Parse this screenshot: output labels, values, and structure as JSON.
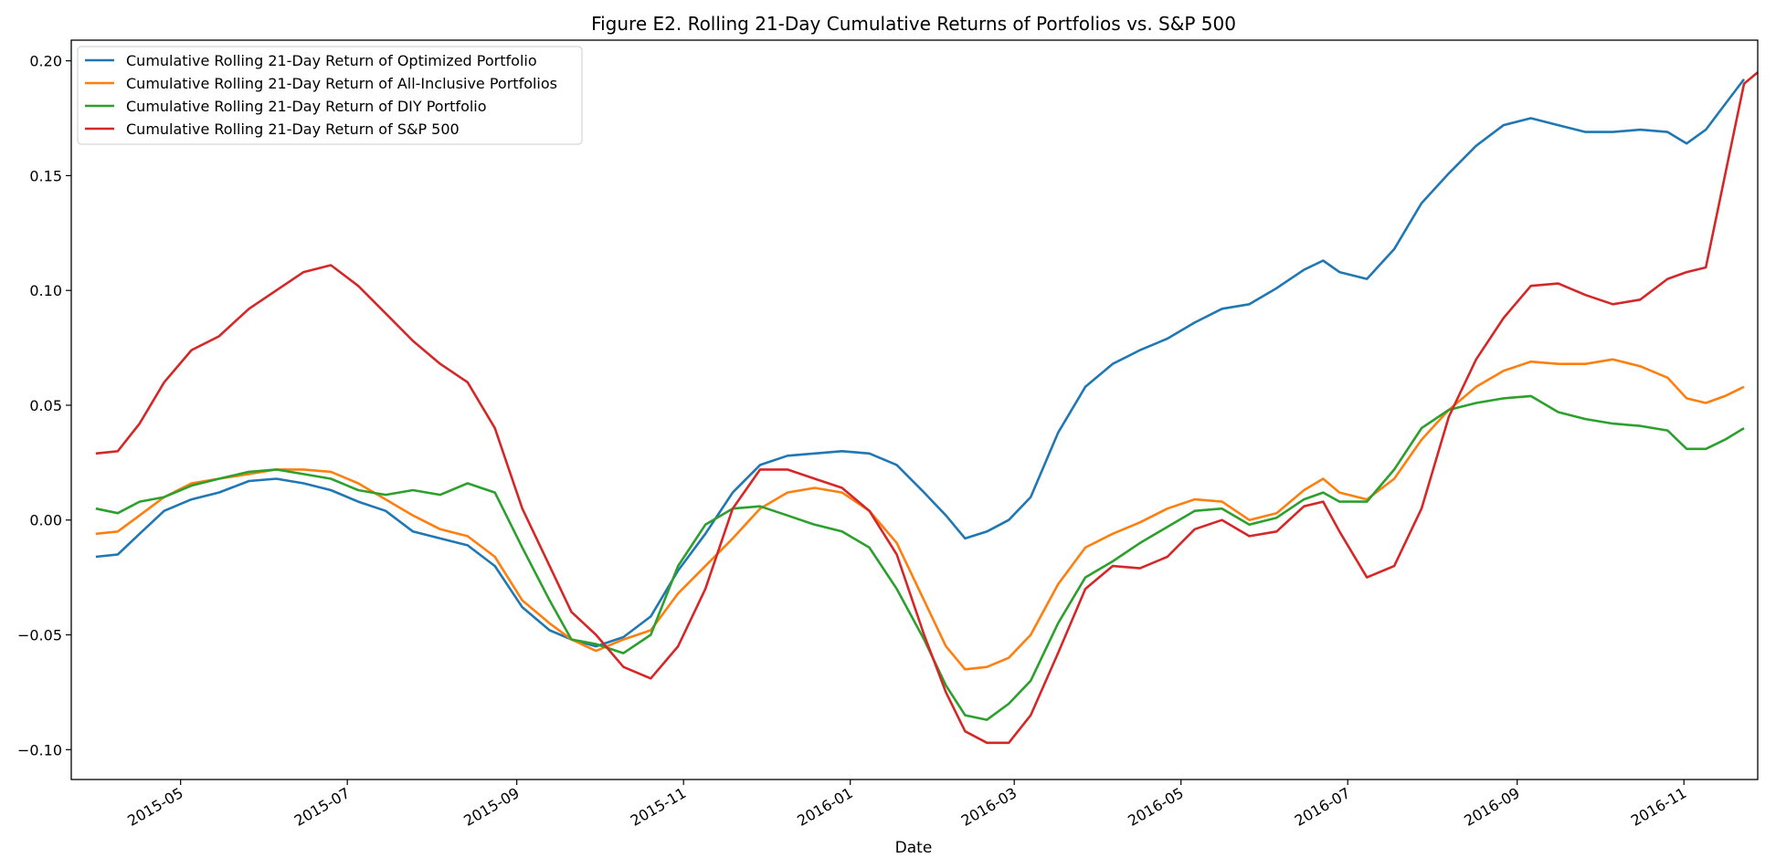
{
  "chart_data": {
    "type": "line",
    "title": "Figure E2. Rolling 21-Day Cumulative Returns of Portfolios vs. S&P 500",
    "xlabel": "Date",
    "ylabel": "",
    "grid": false,
    "legend_position": "top-left",
    "x_ticks": [
      "2015-05",
      "2015-07",
      "2015-09",
      "2015-11",
      "2016-01",
      "2016-03",
      "2016-05",
      "2016-07",
      "2016-09",
      "2016-11"
    ],
    "y_ticks": [
      "0.20",
      "0.15",
      "0.10",
      "0.05",
      "0.00",
      "−0.05",
      "−0.10"
    ],
    "ylim": [
      -0.113,
      0.209
    ],
    "xlim": [
      "2015-03-22",
      "2016-11-28"
    ],
    "series": [
      {
        "name": "Cumulative Rolling 21-Day Return of Optimized Portfolio",
        "color": "#1f77b4",
        "points": [
          [
            "2015-03-31",
            -0.016
          ],
          [
            "2015-04-08",
            -0.015
          ],
          [
            "2015-04-16",
            -0.006
          ],
          [
            "2015-04-25",
            0.004
          ],
          [
            "2015-05-05",
            0.009
          ],
          [
            "2015-05-15",
            0.012
          ],
          [
            "2015-05-26",
            0.017
          ],
          [
            "2015-06-05",
            0.018
          ],
          [
            "2015-06-15",
            0.016
          ],
          [
            "2015-06-25",
            0.013
          ],
          [
            "2015-07-05",
            0.008
          ],
          [
            "2015-07-15",
            0.004
          ],
          [
            "2015-07-25",
            -0.005
          ],
          [
            "2015-08-04",
            -0.008
          ],
          [
            "2015-08-14",
            -0.011
          ],
          [
            "2015-08-24",
            -0.02
          ],
          [
            "2015-09-03",
            -0.038
          ],
          [
            "2015-09-13",
            -0.048
          ],
          [
            "2015-09-21",
            -0.052
          ],
          [
            "2015-09-30",
            -0.055
          ],
          [
            "2015-10-10",
            -0.051
          ],
          [
            "2015-10-20",
            -0.042
          ],
          [
            "2015-10-30",
            -0.022
          ],
          [
            "2015-11-09",
            -0.006
          ],
          [
            "2015-11-19",
            0.012
          ],
          [
            "2015-11-29",
            0.024
          ],
          [
            "2015-12-09",
            0.028
          ],
          [
            "2015-12-19",
            0.029
          ],
          [
            "2015-12-29",
            0.03
          ],
          [
            "2016-01-08",
            0.029
          ],
          [
            "2016-01-18",
            0.024
          ],
          [
            "2016-01-28",
            0.012
          ],
          [
            "2016-02-05",
            0.002
          ],
          [
            "2016-02-12",
            -0.008
          ],
          [
            "2016-02-20",
            -0.005
          ],
          [
            "2016-02-28",
            0.0
          ],
          [
            "2016-03-07",
            0.01
          ],
          [
            "2016-03-17",
            0.038
          ],
          [
            "2016-03-27",
            0.058
          ],
          [
            "2016-04-06",
            0.068
          ],
          [
            "2016-04-16",
            0.074
          ],
          [
            "2016-04-26",
            0.079
          ],
          [
            "2016-05-06",
            0.086
          ],
          [
            "2016-05-16",
            0.092
          ],
          [
            "2016-05-26",
            0.094
          ],
          [
            "2016-06-05",
            0.101
          ],
          [
            "2016-06-15",
            0.109
          ],
          [
            "2016-06-22",
            0.113
          ],
          [
            "2016-06-28",
            0.108
          ],
          [
            "2016-07-08",
            0.105
          ],
          [
            "2016-07-18",
            0.118
          ],
          [
            "2016-07-28",
            0.138
          ],
          [
            "2016-08-07",
            0.151
          ],
          [
            "2016-08-17",
            0.163
          ],
          [
            "2016-08-27",
            0.172
          ],
          [
            "2016-09-06",
            0.175
          ],
          [
            "2016-09-16",
            0.172
          ],
          [
            "2016-09-26",
            0.169
          ],
          [
            "2016-10-06",
            0.169
          ],
          [
            "2016-10-16",
            0.17
          ],
          [
            "2016-10-26",
            0.169
          ],
          [
            "2016-11-02",
            0.164
          ],
          [
            "2016-11-09",
            0.17
          ],
          [
            "2016-11-16",
            0.181
          ],
          [
            "2016-11-23",
            0.192
          ]
        ]
      },
      {
        "name": "Cumulative Rolling 21-Day Return of All-Inclusive Portfolios",
        "color": "#ff7f0e",
        "points": [
          [
            "2015-03-31",
            -0.006
          ],
          [
            "2015-04-08",
            -0.005
          ],
          [
            "2015-04-16",
            0.002
          ],
          [
            "2015-04-25",
            0.01
          ],
          [
            "2015-05-05",
            0.016
          ],
          [
            "2015-05-15",
            0.018
          ],
          [
            "2015-05-26",
            0.02
          ],
          [
            "2015-06-05",
            0.022
          ],
          [
            "2015-06-15",
            0.022
          ],
          [
            "2015-06-25",
            0.021
          ],
          [
            "2015-07-05",
            0.016
          ],
          [
            "2015-07-15",
            0.009
          ],
          [
            "2015-07-25",
            0.002
          ],
          [
            "2015-08-04",
            -0.004
          ],
          [
            "2015-08-14",
            -0.007
          ],
          [
            "2015-08-24",
            -0.016
          ],
          [
            "2015-09-03",
            -0.035
          ],
          [
            "2015-09-13",
            -0.045
          ],
          [
            "2015-09-21",
            -0.052
          ],
          [
            "2015-09-30",
            -0.057
          ],
          [
            "2015-10-10",
            -0.052
          ],
          [
            "2015-10-20",
            -0.048
          ],
          [
            "2015-10-30",
            -0.032
          ],
          [
            "2015-11-09",
            -0.02
          ],
          [
            "2015-11-19",
            -0.008
          ],
          [
            "2015-11-29",
            0.005
          ],
          [
            "2015-12-09",
            0.012
          ],
          [
            "2015-12-19",
            0.014
          ],
          [
            "2015-12-29",
            0.012
          ],
          [
            "2016-01-08",
            0.004
          ],
          [
            "2016-01-18",
            -0.01
          ],
          [
            "2016-01-28",
            -0.035
          ],
          [
            "2016-02-05",
            -0.055
          ],
          [
            "2016-02-12",
            -0.065
          ],
          [
            "2016-02-20",
            -0.064
          ],
          [
            "2016-02-28",
            -0.06
          ],
          [
            "2016-03-07",
            -0.05
          ],
          [
            "2016-03-17",
            -0.028
          ],
          [
            "2016-03-27",
            -0.012
          ],
          [
            "2016-04-06",
            -0.006
          ],
          [
            "2016-04-16",
            -0.001
          ],
          [
            "2016-04-26",
            0.005
          ],
          [
            "2016-05-06",
            0.009
          ],
          [
            "2016-05-16",
            0.008
          ],
          [
            "2016-05-26",
            0.0
          ],
          [
            "2016-06-05",
            0.003
          ],
          [
            "2016-06-15",
            0.013
          ],
          [
            "2016-06-22",
            0.018
          ],
          [
            "2016-06-28",
            0.012
          ],
          [
            "2016-07-08",
            0.009
          ],
          [
            "2016-07-18",
            0.018
          ],
          [
            "2016-07-28",
            0.035
          ],
          [
            "2016-08-07",
            0.048
          ],
          [
            "2016-08-17",
            0.058
          ],
          [
            "2016-08-27",
            0.065
          ],
          [
            "2016-09-06",
            0.069
          ],
          [
            "2016-09-16",
            0.068
          ],
          [
            "2016-09-26",
            0.068
          ],
          [
            "2016-10-06",
            0.07
          ],
          [
            "2016-10-16",
            0.067
          ],
          [
            "2016-10-26",
            0.062
          ],
          [
            "2016-11-02",
            0.053
          ],
          [
            "2016-11-09",
            0.051
          ],
          [
            "2016-11-16",
            0.054
          ],
          [
            "2016-11-23",
            0.058
          ]
        ]
      },
      {
        "name": "Cumulative Rolling 21-Day Return of DIY Portfolio",
        "color": "#2ca02c",
        "points": [
          [
            "2015-03-31",
            0.005
          ],
          [
            "2015-04-08",
            0.003
          ],
          [
            "2015-04-16",
            0.008
          ],
          [
            "2015-04-25",
            0.01
          ],
          [
            "2015-05-05",
            0.015
          ],
          [
            "2015-05-15",
            0.018
          ],
          [
            "2015-05-26",
            0.021
          ],
          [
            "2015-06-05",
            0.022
          ],
          [
            "2015-06-15",
            0.02
          ],
          [
            "2015-06-25",
            0.018
          ],
          [
            "2015-07-05",
            0.013
          ],
          [
            "2015-07-15",
            0.011
          ],
          [
            "2015-07-25",
            0.013
          ],
          [
            "2015-08-04",
            0.011
          ],
          [
            "2015-08-14",
            0.016
          ],
          [
            "2015-08-24",
            0.012
          ],
          [
            "2015-09-03",
            -0.012
          ],
          [
            "2015-09-13",
            -0.035
          ],
          [
            "2015-09-21",
            -0.052
          ],
          [
            "2015-09-30",
            -0.054
          ],
          [
            "2015-10-10",
            -0.058
          ],
          [
            "2015-10-20",
            -0.05
          ],
          [
            "2015-10-30",
            -0.02
          ],
          [
            "2015-11-09",
            -0.002
          ],
          [
            "2015-11-19",
            0.005
          ],
          [
            "2015-11-29",
            0.006
          ],
          [
            "2015-12-09",
            0.002
          ],
          [
            "2015-12-19",
            -0.002
          ],
          [
            "2015-12-29",
            -0.005
          ],
          [
            "2016-01-08",
            -0.012
          ],
          [
            "2016-01-18",
            -0.03
          ],
          [
            "2016-01-28",
            -0.052
          ],
          [
            "2016-02-05",
            -0.072
          ],
          [
            "2016-02-12",
            -0.085
          ],
          [
            "2016-02-20",
            -0.087
          ],
          [
            "2016-02-28",
            -0.08
          ],
          [
            "2016-03-07",
            -0.07
          ],
          [
            "2016-03-17",
            -0.045
          ],
          [
            "2016-03-27",
            -0.025
          ],
          [
            "2016-04-06",
            -0.018
          ],
          [
            "2016-04-16",
            -0.01
          ],
          [
            "2016-04-26",
            -0.003
          ],
          [
            "2016-05-06",
            0.004
          ],
          [
            "2016-05-16",
            0.005
          ],
          [
            "2016-05-26",
            -0.002
          ],
          [
            "2016-06-05",
            0.001
          ],
          [
            "2016-06-15",
            0.009
          ],
          [
            "2016-06-22",
            0.012
          ],
          [
            "2016-06-28",
            0.008
          ],
          [
            "2016-07-08",
            0.008
          ],
          [
            "2016-07-18",
            0.022
          ],
          [
            "2016-07-28",
            0.04
          ],
          [
            "2016-08-07",
            0.048
          ],
          [
            "2016-08-17",
            0.051
          ],
          [
            "2016-08-27",
            0.053
          ],
          [
            "2016-09-06",
            0.054
          ],
          [
            "2016-09-16",
            0.047
          ],
          [
            "2016-09-26",
            0.044
          ],
          [
            "2016-10-06",
            0.042
          ],
          [
            "2016-10-16",
            0.041
          ],
          [
            "2016-10-26",
            0.039
          ],
          [
            "2016-11-02",
            0.031
          ],
          [
            "2016-11-09",
            0.031
          ],
          [
            "2016-11-16",
            0.035
          ],
          [
            "2016-11-23",
            0.04
          ]
        ]
      },
      {
        "name": "Cumulative Rolling 21-Day Return of S&P 500",
        "color": "#d62728",
        "points": [
          [
            "2015-03-31",
            0.029
          ],
          [
            "2015-04-08",
            0.03
          ],
          [
            "2015-04-16",
            0.042
          ],
          [
            "2015-04-25",
            0.06
          ],
          [
            "2015-05-05",
            0.074
          ],
          [
            "2015-05-15",
            0.08
          ],
          [
            "2015-05-26",
            0.092
          ],
          [
            "2015-06-05",
            0.1
          ],
          [
            "2015-06-15",
            0.108
          ],
          [
            "2015-06-25",
            0.111
          ],
          [
            "2015-07-05",
            0.102
          ],
          [
            "2015-07-15",
            0.09
          ],
          [
            "2015-07-25",
            0.078
          ],
          [
            "2015-08-04",
            0.068
          ],
          [
            "2015-08-14",
            0.06
          ],
          [
            "2015-08-24",
            0.04
          ],
          [
            "2015-09-03",
            0.005
          ],
          [
            "2015-09-13",
            -0.02
          ],
          [
            "2015-09-21",
            -0.04
          ],
          [
            "2015-09-30",
            -0.05
          ],
          [
            "2015-10-10",
            -0.064
          ],
          [
            "2015-10-20",
            -0.069
          ],
          [
            "2015-10-30",
            -0.055
          ],
          [
            "2015-11-09",
            -0.03
          ],
          [
            "2015-11-19",
            0.005
          ],
          [
            "2015-11-29",
            0.022
          ],
          [
            "2015-12-09",
            0.022
          ],
          [
            "2015-12-19",
            0.018
          ],
          [
            "2015-12-29",
            0.014
          ],
          [
            "2016-01-08",
            0.004
          ],
          [
            "2016-01-18",
            -0.015
          ],
          [
            "2016-01-28",
            -0.05
          ],
          [
            "2016-02-05",
            -0.075
          ],
          [
            "2016-02-12",
            -0.092
          ],
          [
            "2016-02-20",
            -0.097
          ],
          [
            "2016-02-28",
            -0.097
          ],
          [
            "2016-03-07",
            -0.085
          ],
          [
            "2016-03-17",
            -0.058
          ],
          [
            "2016-03-27",
            -0.03
          ],
          [
            "2016-04-06",
            -0.02
          ],
          [
            "2016-04-16",
            -0.021
          ],
          [
            "2016-04-26",
            -0.016
          ],
          [
            "2016-05-06",
            -0.004
          ],
          [
            "2016-05-16",
            0.0
          ],
          [
            "2016-05-26",
            -0.007
          ],
          [
            "2016-06-05",
            -0.005
          ],
          [
            "2016-06-15",
            0.006
          ],
          [
            "2016-06-22",
            0.008
          ],
          [
            "2016-06-28",
            -0.005
          ],
          [
            "2016-07-08",
            -0.025
          ],
          [
            "2016-07-18",
            -0.02
          ],
          [
            "2016-07-28",
            0.005
          ],
          [
            "2016-08-07",
            0.045
          ],
          [
            "2016-08-17",
            0.07
          ],
          [
            "2016-08-27",
            0.088
          ],
          [
            "2016-09-06",
            0.102
          ],
          [
            "2016-09-16",
            0.103
          ],
          [
            "2016-09-26",
            0.098
          ],
          [
            "2016-10-06",
            0.094
          ],
          [
            "2016-10-16",
            0.096
          ],
          [
            "2016-10-26",
            0.105
          ],
          [
            "2016-11-02",
            0.108
          ],
          [
            "2016-11-09",
            0.11
          ],
          [
            "2016-11-16",
            0.15
          ],
          [
            "2016-11-23",
            0.19
          ],
          [
            "2016-11-28",
            0.195
          ]
        ]
      }
    ]
  }
}
